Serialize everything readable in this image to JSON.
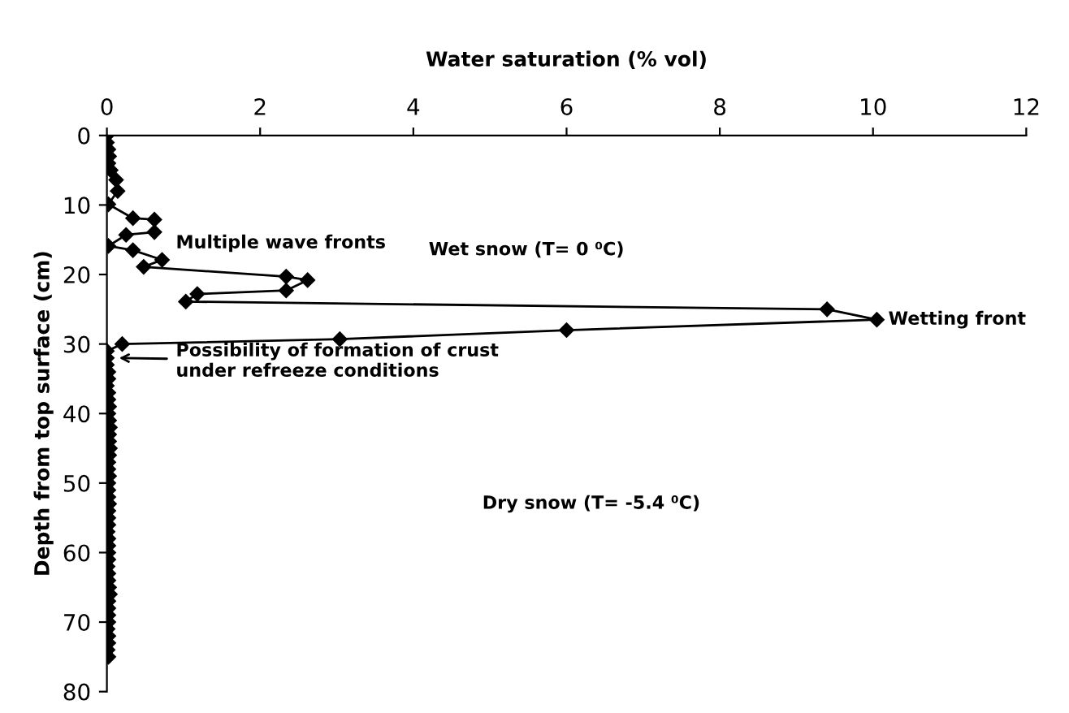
{
  "chart_data": {
    "type": "line",
    "xlabel": "Water saturation (% vol)",
    "ylabel": "Depth from top surface (cm)",
    "xlim": [
      0,
      12
    ],
    "xticks": [
      0,
      2,
      4,
      6,
      8,
      10,
      12
    ],
    "ylim": [
      80,
      0
    ],
    "yticks": [
      0,
      10,
      20,
      30,
      40,
      50,
      60,
      70,
      80
    ],
    "grid": false,
    "marker": "diamond",
    "line_style": "solid",
    "series": [
      {
        "color": "#000000",
        "x": [
          0,
          0,
          0.02,
          0.03,
          0.02,
          0.05,
          0.12,
          0.14,
          0.02,
          0.34,
          0.62,
          0.62,
          0.25,
          0.02,
          0.34,
          0.72,
          0.48,
          2.34,
          2.62,
          2.34,
          1.18,
          1.03,
          9.4,
          10.05,
          6.0,
          3.04,
          0.2,
          0,
          0,
          0,
          0.02,
          0.02,
          0,
          0.02,
          0.02,
          0.03,
          0.02,
          0.03,
          0.04,
          0.03,
          0.03,
          0.04,
          0.03,
          0.02,
          0.02,
          0.03,
          0.02,
          0.02,
          0.02,
          0.03,
          0.02,
          0.02,
          0.02,
          0.01,
          0.02,
          0.02,
          0.02,
          0.02,
          0.01,
          0.02,
          0.02,
          0.03,
          0.04,
          0.02,
          0.02,
          0.02,
          0.02,
          0.01,
          0.02,
          0.02,
          0.01,
          0.02
        ],
        "values": [
          0,
          1,
          2,
          3,
          4,
          5,
          6.4,
          8,
          9.9,
          11.9,
          12.1,
          13.9,
          14.3,
          15.9,
          16.5,
          17.9,
          18.9,
          20.3,
          20.8,
          22.3,
          22.8,
          23.9,
          25,
          26.5,
          28,
          29.3,
          30,
          31,
          32,
          33,
          34,
          35,
          36,
          37,
          38,
          39,
          40,
          41,
          42,
          43,
          44,
          45,
          46,
          47,
          48,
          49,
          50,
          51,
          52,
          53,
          54,
          55,
          56,
          57,
          58,
          59,
          60,
          61,
          62,
          63,
          64,
          65,
          66,
          67,
          68,
          69,
          70,
          71,
          72,
          73,
          74,
          75
        ]
      }
    ],
    "annotations": [
      "Multiple wave fronts",
      "Wet snow (T= 0 ⁰C)",
      {
        "text": "Wetting front",
        "x": 10.05,
        "y": 26.5
      },
      "Possibility of formation of crust\nunder refreeze conditions",
      "Dry snow (T= -5.4 ⁰C)"
    ]
  }
}
